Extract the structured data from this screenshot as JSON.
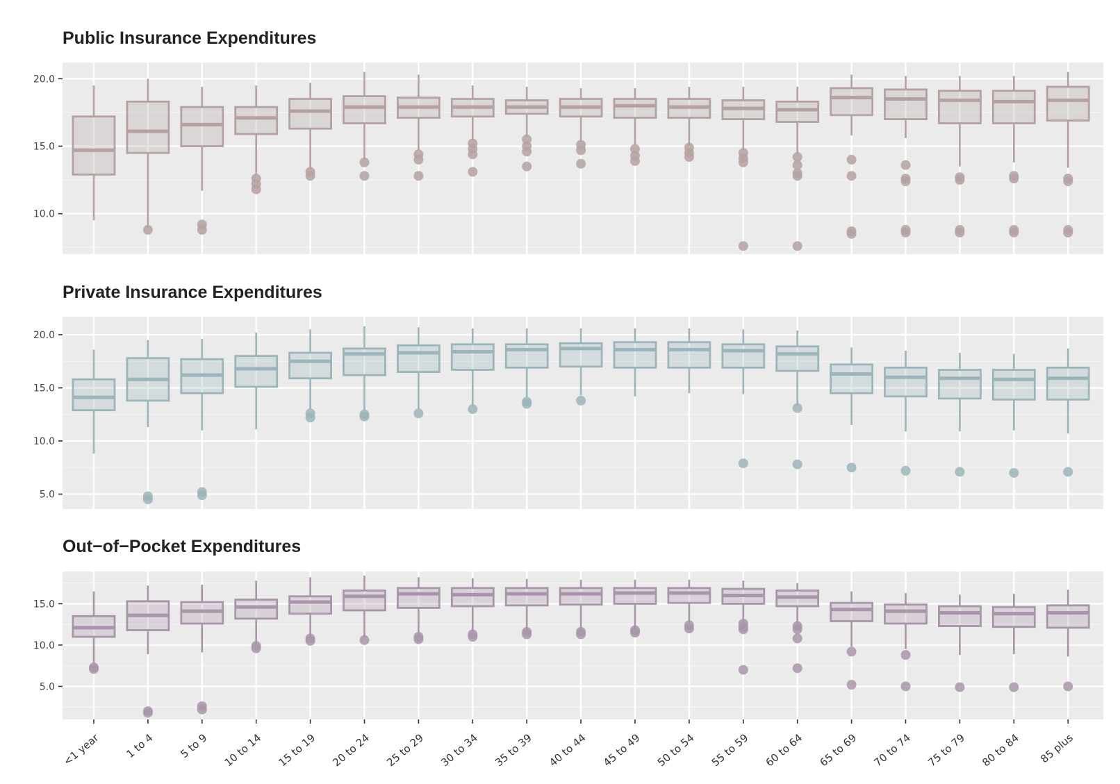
{
  "chart_data": [
    {
      "type": "boxplot",
      "title": "Public Insurance Expenditures",
      "color": "#b5a1a1",
      "ylim": [
        7,
        21.2
      ],
      "yticks": [
        10,
        15,
        20
      ],
      "ytick_labels": [
        "10.0",
        "15.0",
        "20.0"
      ],
      "categories": [
        "<1 year",
        "1 to 4",
        "5 to 9",
        "10 to 14",
        "15 to 19",
        "20 to 24",
        "25 to 29",
        "30 to 34",
        "35 to 39",
        "40 to 44",
        "45 to 49",
        "50 to 54",
        "55 to 59",
        "60 to 64",
        "65 to 69",
        "70 to 74",
        "75 to 79",
        "80 to 84",
        "85 plus"
      ],
      "boxes": [
        {
          "low": 9.5,
          "q1": 12.9,
          "median": 14.7,
          "q3": 17.2,
          "high": 19.5,
          "outliers": []
        },
        {
          "low": 8.9,
          "q1": 14.5,
          "median": 16.1,
          "q3": 18.3,
          "high": 20.0,
          "outliers": [
            8.8
          ]
        },
        {
          "low": 11.7,
          "q1": 15.0,
          "median": 16.6,
          "q3": 17.9,
          "high": 19.4,
          "outliers": [
            9.2,
            8.8
          ]
        },
        {
          "low": 12.9,
          "q1": 15.9,
          "median": 17.1,
          "q3": 17.9,
          "high": 19.5,
          "outliers": [
            12.6,
            12.2,
            11.8
          ]
        },
        {
          "low": 13.3,
          "q1": 16.3,
          "median": 17.6,
          "q3": 18.5,
          "high": 19.7,
          "outliers": [
            13.1,
            12.8
          ]
        },
        {
          "low": 14.0,
          "q1": 16.7,
          "median": 17.9,
          "q3": 18.7,
          "high": 20.5,
          "outliers": [
            13.8,
            12.8
          ]
        },
        {
          "low": 14.7,
          "q1": 17.1,
          "median": 17.9,
          "q3": 18.6,
          "high": 20.3,
          "outliers": [
            14.4,
            14.0,
            12.8
          ]
        },
        {
          "low": 15.4,
          "q1": 17.2,
          "median": 17.9,
          "q3": 18.5,
          "high": 19.5,
          "outliers": [
            15.2,
            14.8,
            14.4,
            13.1
          ]
        },
        {
          "low": 15.7,
          "q1": 17.4,
          "median": 17.9,
          "q3": 18.4,
          "high": 19.4,
          "outliers": [
            15.5,
            15.0,
            14.6,
            13.5
          ]
        },
        {
          "low": 15.3,
          "q1": 17.2,
          "median": 17.9,
          "q3": 18.5,
          "high": 19.3,
          "outliers": [
            15.1,
            14.7,
            13.7
          ]
        },
        {
          "low": 15.1,
          "q1": 17.1,
          "median": 18.0,
          "q3": 18.5,
          "high": 19.3,
          "outliers": [
            14.8,
            14.3,
            13.9
          ]
        },
        {
          "low": 15.1,
          "q1": 17.1,
          "median": 17.9,
          "q3": 18.5,
          "high": 19.4,
          "outliers": [
            14.9,
            14.5,
            14.2
          ]
        },
        {
          "low": 14.7,
          "q1": 17.0,
          "median": 17.8,
          "q3": 18.4,
          "high": 19.4,
          "outliers": [
            14.5,
            14.1,
            13.8,
            7.6
          ]
        },
        {
          "low": 14.4,
          "q1": 16.8,
          "median": 17.7,
          "q3": 18.3,
          "high": 19.4,
          "outliers": [
            14.2,
            13.6,
            13.0,
            12.8,
            7.6
          ]
        },
        {
          "low": 15.8,
          "q1": 17.3,
          "median": 18.6,
          "q3": 19.3,
          "high": 20.3,
          "outliers": [
            14.0,
            12.8,
            8.7,
            8.5
          ]
        },
        {
          "low": 15.6,
          "q1": 17.0,
          "median": 18.5,
          "q3": 19.2,
          "high": 20.2,
          "outliers": [
            13.6,
            12.6,
            12.4,
            8.8,
            8.6
          ]
        },
        {
          "low": 13.5,
          "q1": 16.7,
          "median": 18.4,
          "q3": 19.1,
          "high": 20.2,
          "outliers": [
            12.7,
            12.5,
            8.8,
            8.6
          ]
        },
        {
          "low": 13.8,
          "q1": 16.7,
          "median": 18.3,
          "q3": 19.1,
          "high": 20.2,
          "outliers": [
            12.8,
            12.6,
            8.8,
            8.6
          ]
        },
        {
          "low": 13.4,
          "q1": 16.9,
          "median": 18.4,
          "q3": 19.4,
          "high": 20.5,
          "outliers": [
            12.6,
            12.4,
            8.8,
            8.6
          ]
        }
      ]
    },
    {
      "type": "boxplot",
      "title": "Private Insurance Expenditures",
      "color": "#9bb5ba",
      "ylim": [
        3.6,
        21.7
      ],
      "yticks": [
        5,
        10,
        15,
        20
      ],
      "ytick_labels": [
        "5.0",
        "10.0",
        "15.0",
        "20.0"
      ],
      "categories": [
        "<1 year",
        "1 to 4",
        "5 to 9",
        "10 to 14",
        "15 to 19",
        "20 to 24",
        "25 to 29",
        "30 to 34",
        "35 to 39",
        "40 to 44",
        "45 to 49",
        "50 to 54",
        "55 to 59",
        "60 to 64",
        "65 to 69",
        "70 to 74",
        "75 to 79",
        "80 to 84",
        "85 plus"
      ],
      "boxes": [
        {
          "low": 8.8,
          "q1": 12.9,
          "median": 14.1,
          "q3": 15.8,
          "high": 18.6,
          "outliers": []
        },
        {
          "low": 11.3,
          "q1": 13.8,
          "median": 15.8,
          "q3": 17.8,
          "high": 19.5,
          "outliers": [
            4.8,
            4.5
          ]
        },
        {
          "low": 11.0,
          "q1": 14.5,
          "median": 16.2,
          "q3": 17.7,
          "high": 19.6,
          "outliers": [
            5.2,
            4.9
          ]
        },
        {
          "low": 11.1,
          "q1": 15.1,
          "median": 16.8,
          "q3": 18.0,
          "high": 20.2,
          "outliers": []
        },
        {
          "low": 13.0,
          "q1": 15.9,
          "median": 17.5,
          "q3": 18.3,
          "high": 20.5,
          "outliers": [
            12.6,
            12.2
          ]
        },
        {
          "low": 12.9,
          "q1": 16.2,
          "median": 18.2,
          "q3": 18.7,
          "high": 20.8,
          "outliers": [
            12.5,
            12.3
          ]
        },
        {
          "low": 13.0,
          "q1": 16.5,
          "median": 18.3,
          "q3": 19.0,
          "high": 20.7,
          "outliers": [
            12.6
          ]
        },
        {
          "low": 13.3,
          "q1": 16.7,
          "median": 18.4,
          "q3": 19.1,
          "high": 20.6,
          "outliers": [
            13.0
          ]
        },
        {
          "low": 14.1,
          "q1": 16.9,
          "median": 18.6,
          "q3": 19.1,
          "high": 20.6,
          "outliers": [
            13.7,
            13.5
          ]
        },
        {
          "low": 14.3,
          "q1": 17.0,
          "median": 18.7,
          "q3": 19.2,
          "high": 20.6,
          "outliers": [
            13.8
          ]
        },
        {
          "low": 14.2,
          "q1": 16.9,
          "median": 18.6,
          "q3": 19.3,
          "high": 20.6,
          "outliers": []
        },
        {
          "low": 14.5,
          "q1": 16.9,
          "median": 18.6,
          "q3": 19.3,
          "high": 20.6,
          "outliers": []
        },
        {
          "low": 14.4,
          "q1": 16.9,
          "median": 18.5,
          "q3": 19.1,
          "high": 20.5,
          "outliers": [
            7.9
          ]
        },
        {
          "low": 13.3,
          "q1": 16.6,
          "median": 18.2,
          "q3": 18.9,
          "high": 20.4,
          "outliers": [
            13.1,
            7.8
          ]
        },
        {
          "low": 11.5,
          "q1": 14.5,
          "median": 16.3,
          "q3": 17.2,
          "high": 18.8,
          "outliers": [
            7.5
          ]
        },
        {
          "low": 10.9,
          "q1": 14.2,
          "median": 16.0,
          "q3": 16.9,
          "high": 18.5,
          "outliers": [
            7.2
          ]
        },
        {
          "low": 10.9,
          "q1": 14.0,
          "median": 15.9,
          "q3": 16.7,
          "high": 18.3,
          "outliers": [
            7.1
          ]
        },
        {
          "low": 11.0,
          "q1": 13.9,
          "median": 15.8,
          "q3": 16.7,
          "high": 18.2,
          "outliers": [
            7.0
          ]
        },
        {
          "low": 10.7,
          "q1": 13.9,
          "median": 15.9,
          "q3": 16.9,
          "high": 18.7,
          "outliers": [
            7.1
          ]
        }
      ]
    },
    {
      "type": "boxplot",
      "title": "Out−of−Pocket Expenditures",
      "color": "#a995aa",
      "ylim": [
        1.0,
        18.9
      ],
      "yticks": [
        5,
        10,
        15
      ],
      "ytick_labels": [
        "5.0",
        "10.0",
        "15.0"
      ],
      "categories": [
        "<1 year",
        "1 to 4",
        "5 to 9",
        "10 to 14",
        "15 to 19",
        "20 to 24",
        "25 to 29",
        "30 to 34",
        "35 to 39",
        "40 to 44",
        "45 to 49",
        "50 to 54",
        "55 to 59",
        "60 to 64",
        "65 to 69",
        "70 to 74",
        "75 to 79",
        "80 to 84",
        "85 plus"
      ],
      "boxes": [
        {
          "low": 7.8,
          "q1": 11.0,
          "median": 12.1,
          "q3": 13.5,
          "high": 16.5,
          "outliers": [
            7.3,
            7.1
          ]
        },
        {
          "low": 8.9,
          "q1": 11.8,
          "median": 13.6,
          "q3": 15.3,
          "high": 17.2,
          "outliers": [
            2.0,
            1.8
          ]
        },
        {
          "low": 9.1,
          "q1": 12.6,
          "median": 14.1,
          "q3": 15.2,
          "high": 17.3,
          "outliers": [
            2.6,
            2.2
          ]
        },
        {
          "low": 10.1,
          "q1": 13.2,
          "median": 14.6,
          "q3": 15.5,
          "high": 17.8,
          "outliers": [
            9.9,
            9.6
          ]
        },
        {
          "low": 11.0,
          "q1": 13.8,
          "median": 15.2,
          "q3": 15.9,
          "high": 18.2,
          "outliers": [
            10.8,
            10.5
          ]
        },
        {
          "low": 10.9,
          "q1": 14.2,
          "median": 15.9,
          "q3": 16.6,
          "high": 18.4,
          "outliers": [
            10.6
          ]
        },
        {
          "low": 11.2,
          "q1": 14.5,
          "median": 16.2,
          "q3": 16.9,
          "high": 18.2,
          "outliers": [
            11.0,
            10.7
          ]
        },
        {
          "low": 11.5,
          "q1": 14.7,
          "median": 16.1,
          "q3": 16.9,
          "high": 18.1,
          "outliers": [
            11.3,
            11.0
          ]
        },
        {
          "low": 11.8,
          "q1": 14.8,
          "median": 16.2,
          "q3": 16.9,
          "high": 18.0,
          "outliers": [
            11.6,
            11.3
          ]
        },
        {
          "low": 11.8,
          "q1": 14.9,
          "median": 16.2,
          "q3": 16.9,
          "high": 17.9,
          "outliers": [
            11.6,
            11.3
          ]
        },
        {
          "low": 12.0,
          "q1": 15.0,
          "median": 16.3,
          "q3": 16.9,
          "high": 17.9,
          "outliers": [
            11.8,
            11.5
          ]
        },
        {
          "low": 12.6,
          "q1": 15.1,
          "median": 16.3,
          "q3": 16.9,
          "high": 17.9,
          "outliers": [
            12.4,
            12.0
          ]
        },
        {
          "low": 12.8,
          "q1": 15.0,
          "median": 16.0,
          "q3": 16.8,
          "high": 17.8,
          "outliers": [
            12.6,
            12.2,
            11.9,
            7.0
          ]
        },
        {
          "low": 12.5,
          "q1": 14.7,
          "median": 15.8,
          "q3": 16.6,
          "high": 17.5,
          "outliers": [
            12.3,
            11.9,
            10.8,
            7.2
          ]
        },
        {
          "low": 9.8,
          "q1": 12.9,
          "median": 14.3,
          "q3": 15.1,
          "high": 16.5,
          "outliers": [
            9.2,
            5.2
          ]
        },
        {
          "low": 9.5,
          "q1": 12.6,
          "median": 14.1,
          "q3": 14.9,
          "high": 16.3,
          "outliers": [
            8.8,
            5.0
          ]
        },
        {
          "low": 8.8,
          "q1": 12.3,
          "median": 13.9,
          "q3": 14.7,
          "high": 16.1,
          "outliers": [
            4.9
          ]
        },
        {
          "low": 8.9,
          "q1": 12.2,
          "median": 13.8,
          "q3": 14.6,
          "high": 16.2,
          "outliers": [
            4.9
          ]
        },
        {
          "low": 8.6,
          "q1": 12.1,
          "median": 13.9,
          "q3": 14.8,
          "high": 16.7,
          "outliers": [
            5.0
          ]
        }
      ]
    }
  ]
}
